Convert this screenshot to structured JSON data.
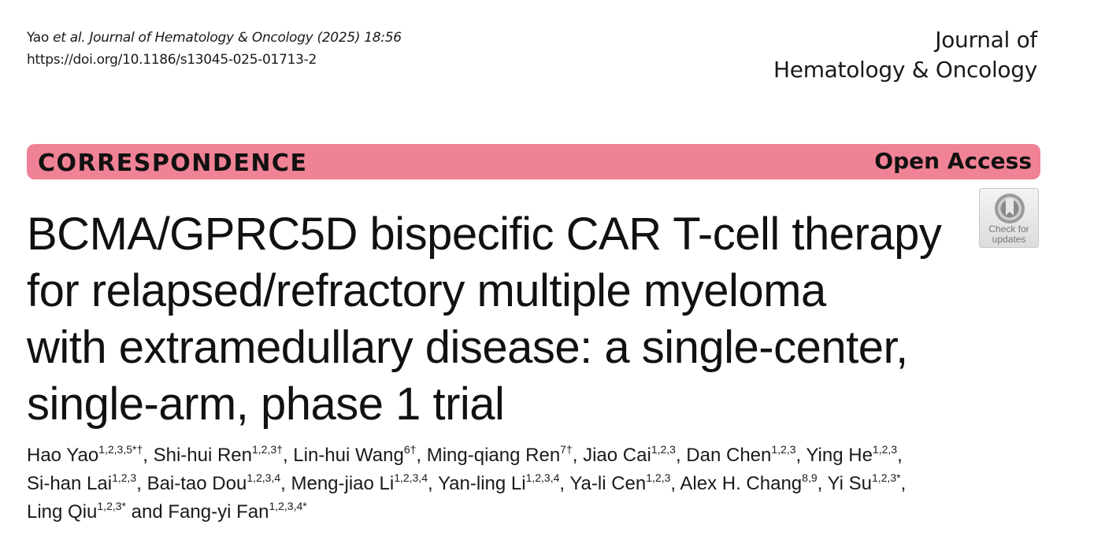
{
  "header": {
    "citation": {
      "authors": "Yao ",
      "et_al": "et al.",
      "journal_ref": " Journal of Hematology & Oncology  (2025) 18:56",
      "doi": "https://doi.org/10.1186/s13045-025-01713-2"
    },
    "journal_name_line1": "Journal of",
    "journal_name_line2": "Hematology & Oncology"
  },
  "type_bar": {
    "article_type": "CORRESPONDENCE",
    "access": "Open Access",
    "color": "#f08295"
  },
  "check_badge": {
    "line1": "Check for",
    "line2": "updates",
    "icon": "crossmark-icon"
  },
  "title_lines": [
    "BCMA/GPRC5D bispecific CAR T-cell therapy",
    "for relapsed/refractory multiple myeloma",
    "with extramedullary disease: a single-center,",
    "single-arm, phase 1 trial"
  ],
  "authors": [
    {
      "name": "Hao Yao",
      "sup": "1,2,3,5*†"
    },
    {
      "name": "Shi-hui Ren",
      "sup": "1,2,3†"
    },
    {
      "name": "Lin-hui Wang",
      "sup": "6†"
    },
    {
      "name": "Ming-qiang Ren",
      "sup": "7†"
    },
    {
      "name": "Jiao Cai",
      "sup": "1,2,3"
    },
    {
      "name": "Dan Chen",
      "sup": "1,2,3"
    },
    {
      "name": "Ying He",
      "sup": "1,2,3"
    },
    {
      "name": "Si-han Lai",
      "sup": "1,2,3"
    },
    {
      "name": "Bai-tao Dou",
      "sup": "1,2,3,4"
    },
    {
      "name": "Meng-jiao Li",
      "sup": "1,2,3,4"
    },
    {
      "name": "Yan-ling Li",
      "sup": "1,2,3,4"
    },
    {
      "name": "Ya-li Cen",
      "sup": "1,2,3"
    },
    {
      "name": "Alex H. Chang",
      "sup": "8,9"
    },
    {
      "name": "Yi Su",
      "sup": "1,2,3*"
    },
    {
      "name": "Ling Qiu",
      "sup": "1,2,3*"
    },
    {
      "name": "Fang-yi Fan",
      "sup": "1,2,3,4*"
    }
  ],
  "separators": [
    ", ",
    ", ",
    ", ",
    ", ",
    ", ",
    ", ",
    ", ",
    ", ",
    ", ",
    ", ",
    ", ",
    ", ",
    ", ",
    ", ",
    " and "
  ]
}
